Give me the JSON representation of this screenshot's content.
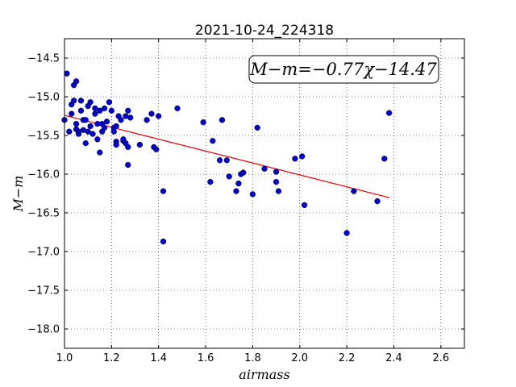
{
  "chart_data": {
    "type": "scatter",
    "title": "2021-10-24_224318",
    "xlabel": "airmass",
    "ylabel": "M−m",
    "equation": "M−m=−0.77χ−14.47",
    "xlim": [
      1.0,
      2.7
    ],
    "ylim": [
      -18.25,
      -14.25
    ],
    "y_inverted": false,
    "grid": true,
    "xticks": [
      "1.0",
      "1.2",
      "1.4",
      "1.6",
      "1.8",
      "2.0",
      "2.2",
      "2.4",
      "2.6"
    ],
    "yticks": [
      "−14.5",
      "−15.0",
      "−15.5",
      "−16.0",
      "−16.5",
      "−17.0",
      "−17.5",
      "−18.0"
    ],
    "xtick_values": [
      1.0,
      1.2,
      1.4,
      1.6,
      1.8,
      2.0,
      2.2,
      2.4,
      2.6
    ],
    "ytick_values": [
      -14.5,
      -15.0,
      -15.5,
      -16.0,
      -16.5,
      -17.0,
      -17.5,
      -18.0
    ],
    "fit": {
      "slope": -0.77,
      "intercept": -14.47,
      "x_range": [
        1.0,
        2.38
      ],
      "color": "#dd0000"
    },
    "point_color": "#0000cc",
    "points": [
      [
        1.0,
        -15.3
      ],
      [
        1.01,
        -14.7
      ],
      [
        1.02,
        -15.45
      ],
      [
        1.03,
        -15.1
      ],
      [
        1.03,
        -15.22
      ],
      [
        1.04,
        -15.05
      ],
      [
        1.04,
        -14.85
      ],
      [
        1.05,
        -14.8
      ],
      [
        1.05,
        -15.35
      ],
      [
        1.05,
        -15.42
      ],
      [
        1.06,
        -15.45
      ],
      [
        1.06,
        -15.48
      ],
      [
        1.07,
        -15.05
      ],
      [
        1.07,
        -15.18
      ],
      [
        1.08,
        -15.3
      ],
      [
        1.08,
        -15.43
      ],
      [
        1.09,
        -15.3
      ],
      [
        1.09,
        -15.6
      ],
      [
        1.1,
        -15.12
      ],
      [
        1.1,
        -15.45
      ],
      [
        1.11,
        -15.07
      ],
      [
        1.11,
        -15.38
      ],
      [
        1.12,
        -15.48
      ],
      [
        1.13,
        -15.15
      ],
      [
        1.13,
        -15.22
      ],
      [
        1.14,
        -15.35
      ],
      [
        1.14,
        -15.55
      ],
      [
        1.15,
        -15.18
      ],
      [
        1.15,
        -15.72
      ],
      [
        1.16,
        -15.45
      ],
      [
        1.16,
        -15.35
      ],
      [
        1.17,
        -15.15
      ],
      [
        1.17,
        -15.4
      ],
      [
        1.18,
        -15.32
      ],
      [
        1.19,
        -15.07
      ],
      [
        1.2,
        -15.18
      ],
      [
        1.21,
        -15.45
      ],
      [
        1.21,
        -15.4
      ],
      [
        1.22,
        -15.38
      ],
      [
        1.22,
        -15.58
      ],
      [
        1.22,
        -15.62
      ],
      [
        1.23,
        -15.25
      ],
      [
        1.24,
        -15.3
      ],
      [
        1.25,
        -15.57
      ],
      [
        1.25,
        -15.55
      ],
      [
        1.26,
        -15.25
      ],
      [
        1.26,
        -15.6
      ],
      [
        1.27,
        -15.88
      ],
      [
        1.27,
        -15.65
      ],
      [
        1.27,
        -15.18
      ],
      [
        1.28,
        -15.27
      ],
      [
        1.32,
        -15.62
      ],
      [
        1.35,
        -15.3
      ],
      [
        1.37,
        -15.22
      ],
      [
        1.38,
        -15.65
      ],
      [
        1.39,
        -15.68
      ],
      [
        1.4,
        -15.25
      ],
      [
        1.42,
        -16.22
      ],
      [
        1.42,
        -16.87
      ],
      [
        1.48,
        -15.15
      ],
      [
        1.59,
        -15.33
      ],
      [
        1.62,
        -16.1
      ],
      [
        1.63,
        -15.57
      ],
      [
        1.66,
        -15.82
      ],
      [
        1.67,
        -15.3
      ],
      [
        1.69,
        -15.82
      ],
      [
        1.7,
        -16.03
      ],
      [
        1.73,
        -16.22
      ],
      [
        1.74,
        -16.12
      ],
      [
        1.75,
        -16.0
      ],
      [
        1.76,
        -15.98
      ],
      [
        1.8,
        -16.26
      ],
      [
        1.82,
        -15.4
      ],
      [
        1.85,
        -15.93
      ],
      [
        1.9,
        -15.97
      ],
      [
        1.9,
        -16.1
      ],
      [
        1.91,
        -16.22
      ],
      [
        1.98,
        -15.8
      ],
      [
        2.01,
        -15.77
      ],
      [
        2.02,
        -16.4
      ],
      [
        2.2,
        -16.76
      ],
      [
        2.23,
        -16.22
      ],
      [
        2.33,
        -16.35
      ],
      [
        2.36,
        -15.8
      ],
      [
        2.38,
        -15.21
      ]
    ]
  }
}
